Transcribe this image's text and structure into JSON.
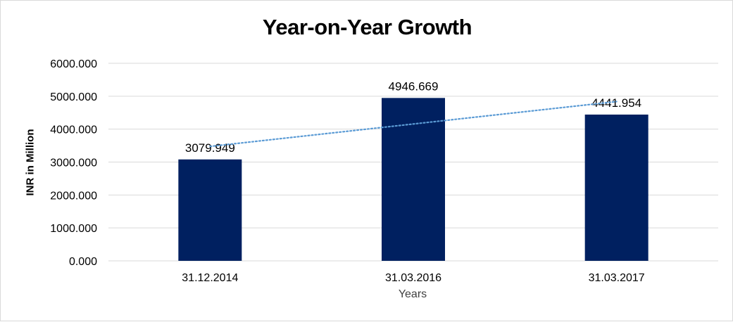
{
  "chart_data": {
    "type": "bar",
    "title": "Year-on-Year Growth",
    "xlabel": "Years",
    "ylabel": "INR in Million",
    "categories": [
      "31.12.2014",
      "31.03.2016",
      "31.03.2017"
    ],
    "values": [
      3079.949,
      4946.669,
      4441.954
    ],
    "data_labels": [
      "3079.949",
      "4946.669",
      "4441.954"
    ],
    "y_ticks": [
      "0.000",
      "1000.000",
      "2000.000",
      "3000.000",
      "4000.000",
      "5000.000",
      "6000.000"
    ],
    "ylim": [
      0,
      6000
    ],
    "grid": true,
    "trendline": "linear",
    "legend": "none",
    "colors": {
      "bar": "#002060",
      "trendline": "#5b9bd5",
      "grid": "#d9d9d9"
    }
  }
}
